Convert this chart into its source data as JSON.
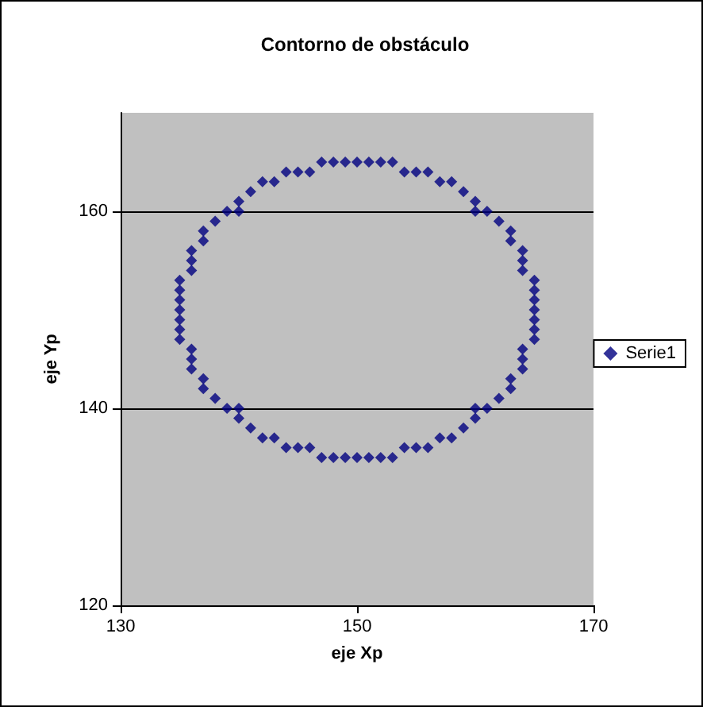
{
  "chart_data": {
    "type": "scatter",
    "title": "Contorno de obstáculo",
    "xlabel": "eje Xp",
    "ylabel": "eje Yp",
    "xlim": [
      130,
      170
    ],
    "xticks": [
      130,
      150,
      170
    ],
    "ylim": [
      120,
      170
    ],
    "yticks": [
      120,
      140,
      160
    ],
    "grid": "y",
    "legend": "right",
    "marker": "diamond",
    "series": [
      {
        "name": "Serie1",
        "color": "#000080",
        "x": [
          150,
          151,
          152,
          153,
          154,
          155,
          156,
          157,
          158,
          159,
          160,
          160,
          161,
          162,
          163,
          163,
          164,
          164,
          164,
          165,
          165,
          165,
          165,
          165,
          165,
          165,
          164,
          164,
          164,
          163,
          163,
          162,
          161,
          160,
          160,
          159,
          158,
          157,
          156,
          155,
          154,
          153,
          152,
          151,
          150,
          149,
          148,
          147,
          146,
          145,
          144,
          143,
          142,
          141,
          140,
          140,
          139,
          138,
          137,
          137,
          136,
          136,
          136,
          135,
          135,
          135,
          135,
          135,
          135,
          135,
          136,
          136,
          136,
          137,
          137,
          138,
          139,
          140,
          140,
          141,
          142,
          143,
          144,
          145,
          146,
          147,
          148,
          149
        ],
        "values": [
          165,
          165,
          165,
          165,
          164,
          164,
          164,
          163,
          163,
          162,
          161,
          160,
          160,
          159,
          158,
          157,
          156,
          155,
          154,
          153,
          152,
          151,
          150,
          149,
          148,
          147,
          146,
          145,
          144,
          143,
          142,
          141,
          140,
          140,
          139,
          138,
          137,
          137,
          136,
          136,
          136,
          135,
          135,
          135,
          135,
          135,
          135,
          135,
          136,
          136,
          136,
          137,
          137,
          138,
          139,
          140,
          140,
          141,
          142,
          143,
          144,
          145,
          146,
          147,
          148,
          149,
          150,
          151,
          152,
          153,
          154,
          155,
          156,
          157,
          158,
          159,
          160,
          160,
          161,
          162,
          163,
          163,
          164,
          164,
          164,
          165,
          165,
          165
        ]
      }
    ]
  }
}
